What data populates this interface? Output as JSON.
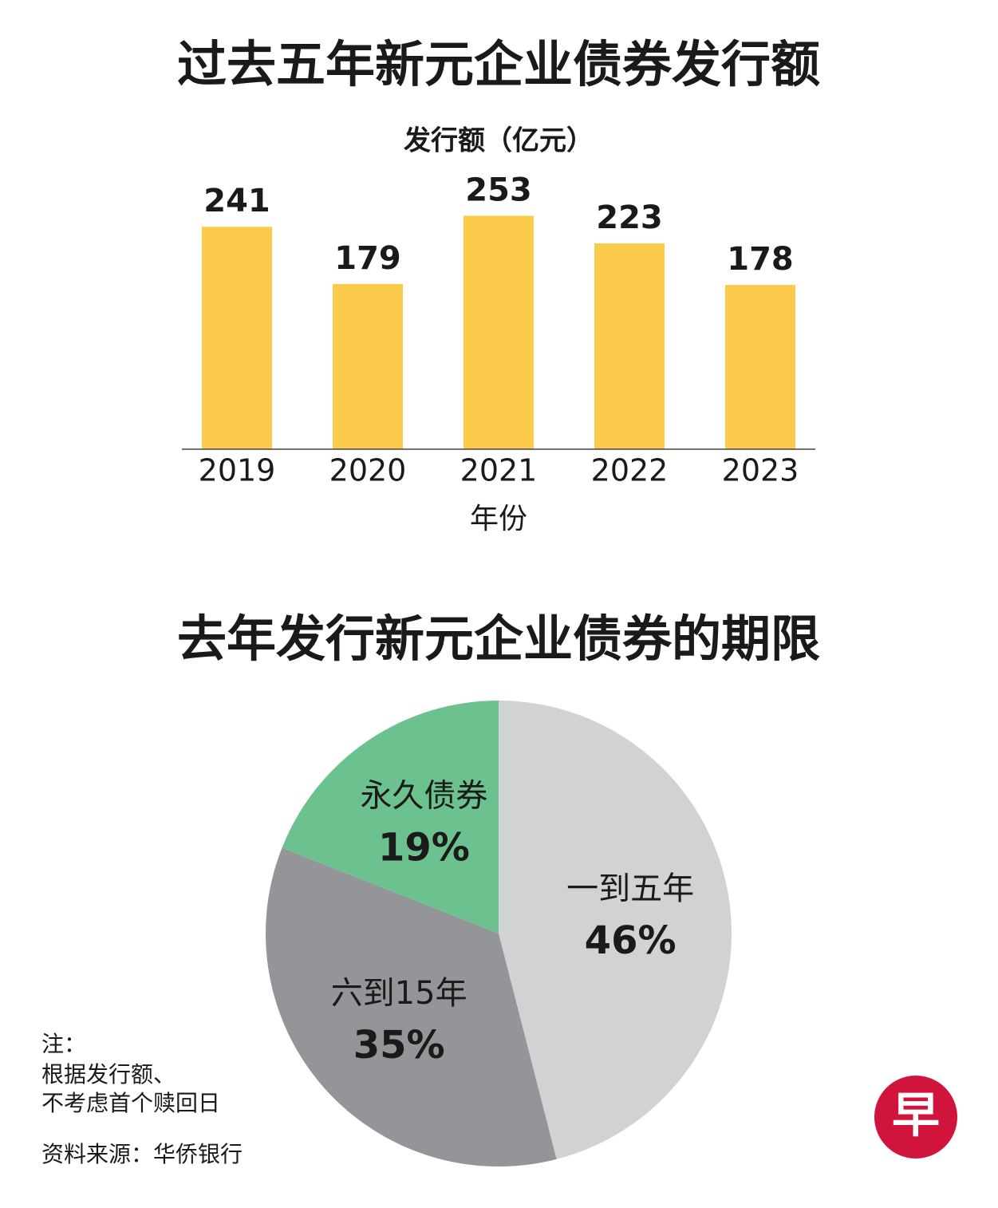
{
  "chart_data": [
    {
      "type": "bar",
      "title": "过去五年新元企业债券发行额",
      "subtitle": "发行额（亿元）",
      "x_label": "年份",
      "categories": [
        "2019",
        "2020",
        "2021",
        "2022",
        "2023"
      ],
      "values": [
        241,
        179,
        253,
        223,
        178
      ],
      "color": "#fdcb4b",
      "ylim": [
        0,
        300
      ]
    },
    {
      "type": "pie",
      "title": "去年发行新元企业债券的期限",
      "categories": [
        "一到五年",
        "六到15年",
        "永久债券"
      ],
      "values": [
        46,
        35,
        19
      ],
      "value_labels": [
        "46%",
        "35%",
        "19%"
      ],
      "colors": [
        "#d1d2d4",
        "#939598",
        "#6cc28f"
      ]
    }
  ],
  "notes": [
    "注：",
    "根据发行额、",
    "不考虑首个赎回日"
  ],
  "source": "资料来源：华侨银行",
  "logo": "早"
}
